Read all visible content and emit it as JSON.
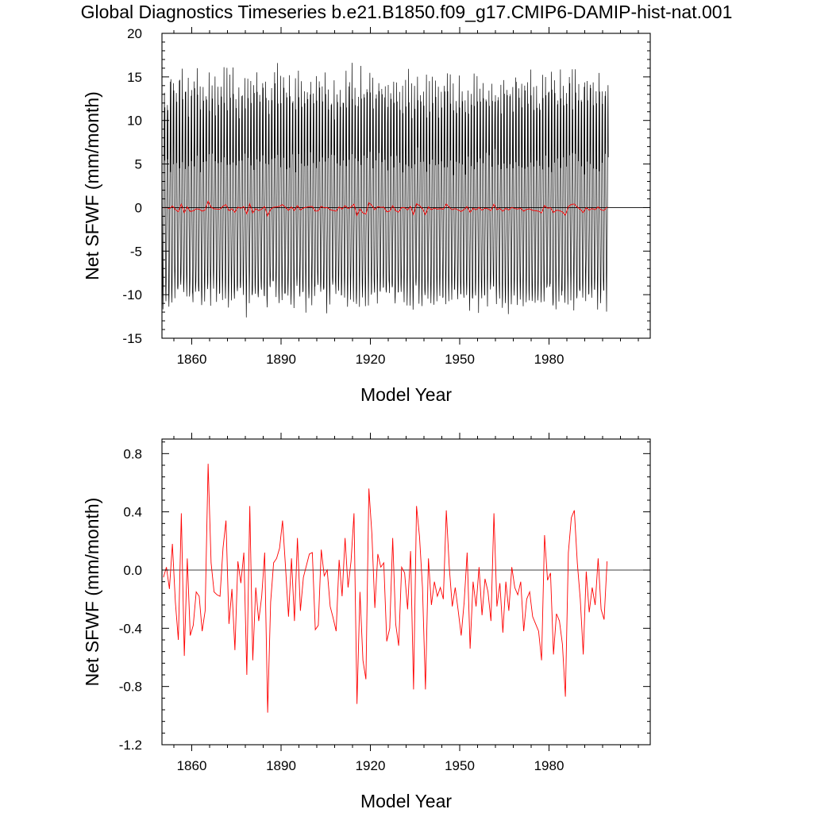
{
  "title": "Global Diagnostics Timeseries b.e21.B1850.f09_g17.CMIP6-DAMIP-hist-nat.001",
  "chart_data": [
    {
      "type": "line",
      "xlabel": "Model Year",
      "ylabel": "Net SFWF (mm/month)",
      "xlim": [
        1850,
        2014
      ],
      "ylim": [
        -15,
        20
      ],
      "xticks": [
        1860,
        1890,
        1920,
        1950,
        1980
      ],
      "yticks": [
        -15,
        -10,
        -5,
        0,
        5,
        10,
        15,
        20
      ],
      "ytick_labels": [
        "-15",
        "-10",
        "-5",
        "0",
        "5",
        "10",
        "15",
        "20"
      ],
      "zero_line": true,
      "series": [
        {
          "color": "#000000",
          "resolution": "monthly",
          "seasonal_cycle_monthly": [
            12.5,
            1.2,
            -4.3,
            -8.6,
            -10.3,
            -8.8,
            -5.2,
            -1.1,
            3.8,
            9.6,
            14.2,
            5.3
          ],
          "overlay": "annual_mean"
        },
        {
          "color": "#ff0000",
          "resolution": "annual",
          "values_ref": "annual_mean"
        }
      ]
    },
    {
      "type": "line",
      "xlabel": "Model Year",
      "ylabel": "Net SFWF (mm/month)",
      "xlim": [
        1850,
        2014
      ],
      "ylim": [
        -1.2,
        0.9
      ],
      "xticks": [
        1860,
        1890,
        1920,
        1950,
        1980
      ],
      "yticks": [
        -1.2,
        -0.8,
        -0.4,
        0.0,
        0.4,
        0.8
      ],
      "ytick_labels": [
        "-1.2",
        "-0.8",
        "-0.4",
        "0.0",
        "0.4",
        "0.8"
      ],
      "zero_line": true,
      "series": [
        {
          "color": "#ff0000",
          "x_start": 1850,
          "x_step": 1,
          "values": [
            -0.05,
            0.02,
            -0.13,
            0.18,
            -0.22,
            -0.48,
            0.39,
            -0.59,
            0.08,
            -0.45,
            -0.38,
            -0.15,
            -0.18,
            -0.42,
            -0.28,
            0.73,
            0.05,
            -0.15,
            -0.17,
            -0.18,
            0.15,
            0.34,
            -0.37,
            -0.13,
            -0.55,
            0.06,
            -0.09,
            0.12,
            -0.72,
            0.44,
            -0.62,
            -0.12,
            -0.35,
            -0.18,
            0.12,
            -0.98,
            -0.22,
            0.05,
            0.08,
            0.15,
            0.34,
            0.02,
            -0.32,
            0.08,
            -0.35,
            0.22,
            -0.28,
            -0.05,
            0.03,
            0.11,
            0.12,
            -0.41,
            -0.38,
            0.14,
            -0.04,
            0.0,
            -0.25,
            -0.33,
            -0.42,
            0.07,
            -0.18,
            0.22,
            -0.12,
            0.06,
            0.39,
            -0.92,
            -0.15,
            -0.62,
            -0.75,
            0.56,
            0.25,
            -0.26,
            0.11,
            0.02,
            0.05,
            -0.49,
            -0.4,
            0.22,
            -0.37,
            -0.52,
            0.02,
            -0.02,
            -0.27,
            0.13,
            -0.82,
            0.44,
            0.23,
            -0.12,
            -0.82,
            0.08,
            -0.24,
            -0.08,
            -0.18,
            -0.12,
            -0.2,
            0.41,
            0.02,
            -0.25,
            -0.12,
            -0.28,
            -0.45,
            -0.22,
            0.12,
            -0.54,
            -0.08,
            -0.25,
            0.02,
            -0.31,
            -0.06,
            -0.15,
            -0.35,
            0.39,
            -0.25,
            -0.09,
            -0.43,
            -0.08,
            -0.28,
            0.02,
            -0.12,
            -0.17,
            -0.08,
            -0.42,
            -0.2,
            -0.15,
            -0.32,
            -0.37,
            -0.42,
            -0.62,
            0.24,
            -0.07,
            -0.02,
            -0.58,
            -0.3,
            -0.35,
            -0.51,
            -0.87,
            0.12,
            0.36,
            0.41,
            0.05,
            -0.2,
            -0.58,
            -0.01,
            -0.29,
            -0.12,
            -0.24,
            0.08,
            -0.27,
            -0.34,
            0.06
          ]
        }
      ]
    }
  ]
}
